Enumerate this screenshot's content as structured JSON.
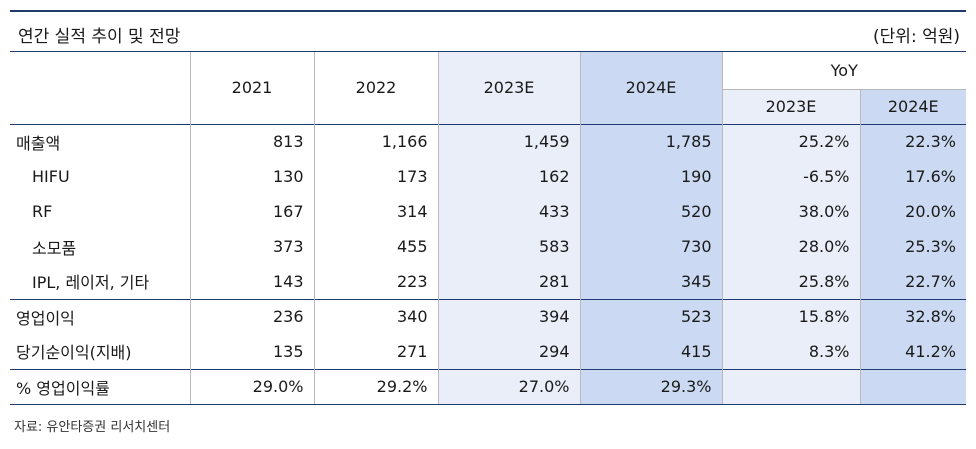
{
  "title": "연간 실적 추이 및 전망",
  "unit": "(단위: 억원)",
  "columns": {
    "y2021": "2021",
    "y2022": "2022",
    "y2023e": "2023E",
    "y2024e": "2024E",
    "yoy": "YoY",
    "yoy_2023e": "2023E",
    "yoy_2024e": "2024E"
  },
  "rows": [
    {
      "label": "매출액",
      "v2021": "813",
      "v2022": "1,166",
      "v2023e": "1,459",
      "v2024e": "1,785",
      "yoy2023": "25.2%",
      "yoy2024": "22.3%"
    },
    {
      "label": "HIFU",
      "v2021": "130",
      "v2022": "173",
      "v2023e": "162",
      "v2024e": "190",
      "yoy2023": "-6.5%",
      "yoy2024": "17.6%"
    },
    {
      "label": "RF",
      "v2021": "167",
      "v2022": "314",
      "v2023e": "433",
      "v2024e": "520",
      "yoy2023": "38.0%",
      "yoy2024": "20.0%"
    },
    {
      "label": "소모품",
      "v2021": "373",
      "v2022": "455",
      "v2023e": "583",
      "v2024e": "730",
      "yoy2023": "28.0%",
      "yoy2024": "25.3%"
    },
    {
      "label": "IPL, 레이저, 기타",
      "v2021": "143",
      "v2022": "223",
      "v2023e": "281",
      "v2024e": "345",
      "yoy2023": "25.8%",
      "yoy2024": "22.7%"
    },
    {
      "label": "영업이익",
      "v2021": "236",
      "v2022": "340",
      "v2023e": "394",
      "v2024e": "523",
      "yoy2023": "15.8%",
      "yoy2024": "32.8%"
    },
    {
      "label": "당기순이익(지배)",
      "v2021": "135",
      "v2022": "271",
      "v2023e": "294",
      "v2024e": "415",
      "yoy2023": "8.3%",
      "yoy2024": "41.2%"
    },
    {
      "label": "% 영업이익률",
      "v2021": "29.0%",
      "v2022": "29.2%",
      "v2023e": "27.0%",
      "v2024e": "29.3%",
      "yoy2023": "",
      "yoy2024": ""
    }
  ],
  "source": "자료: 유안타증권 리서치센터"
}
